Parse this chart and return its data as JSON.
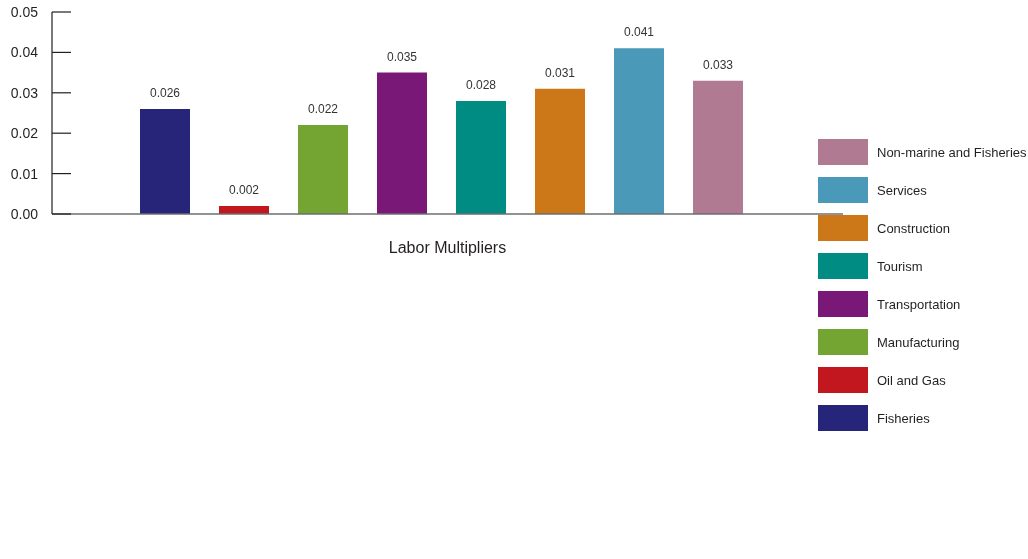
{
  "chart_data": {
    "type": "bar",
    "xlabel": "Labor Multipliers",
    "categories": [
      null,
      null,
      null,
      null,
      null,
      null,
      null,
      null
    ],
    "series": [
      {
        "name": "Non-marine and Fisheries",
        "color": "#b07a93",
        "values": [
          null,
          null,
          null,
          null,
          null,
          null,
          null,
          0.033
        ]
      },
      {
        "name": "Services",
        "color": "#4b99b8",
        "values": [
          null,
          null,
          null,
          null,
          null,
          null,
          0.041,
          null
        ]
      },
      {
        "name": "Construction",
        "color": "#cc7818",
        "values": [
          null,
          null,
          null,
          null,
          null,
          0.031,
          null,
          null
        ]
      },
      {
        "name": "Tourism",
        "color": "#008c82",
        "values": [
          null,
          null,
          null,
          null,
          0.028,
          null,
          null,
          null
        ]
      },
      {
        "name": "Transportation",
        "color": "#7a1878",
        "values": [
          null,
          null,
          null,
          0.035,
          null,
          null,
          null,
          null
        ]
      },
      {
        "name": "Manufacturing",
        "color": "#74a533",
        "values": [
          null,
          null,
          0.022,
          null,
          null,
          null,
          null,
          null
        ]
      },
      {
        "name": "Oil and Gas",
        "color": "#c2171e",
        "values": [
          null,
          0.002,
          null,
          null,
          null,
          null,
          null,
          null
        ]
      },
      {
        "name": "Fisheries",
        "color": "#272579",
        "values": [
          0.026,
          null,
          null,
          null,
          null,
          null,
          null,
          null
        ]
      }
    ],
    "stacked": true,
    "ylim": [
      0,
      0.05
    ],
    "yticks": [
      {
        "value": 0,
        "label": "0.00"
      },
      0.01,
      0.02,
      0.03,
      0.04,
      0.05
    ],
    "tick_labels": "y",
    "data_labels": true,
    "grid": false,
    "legend": "right"
  }
}
